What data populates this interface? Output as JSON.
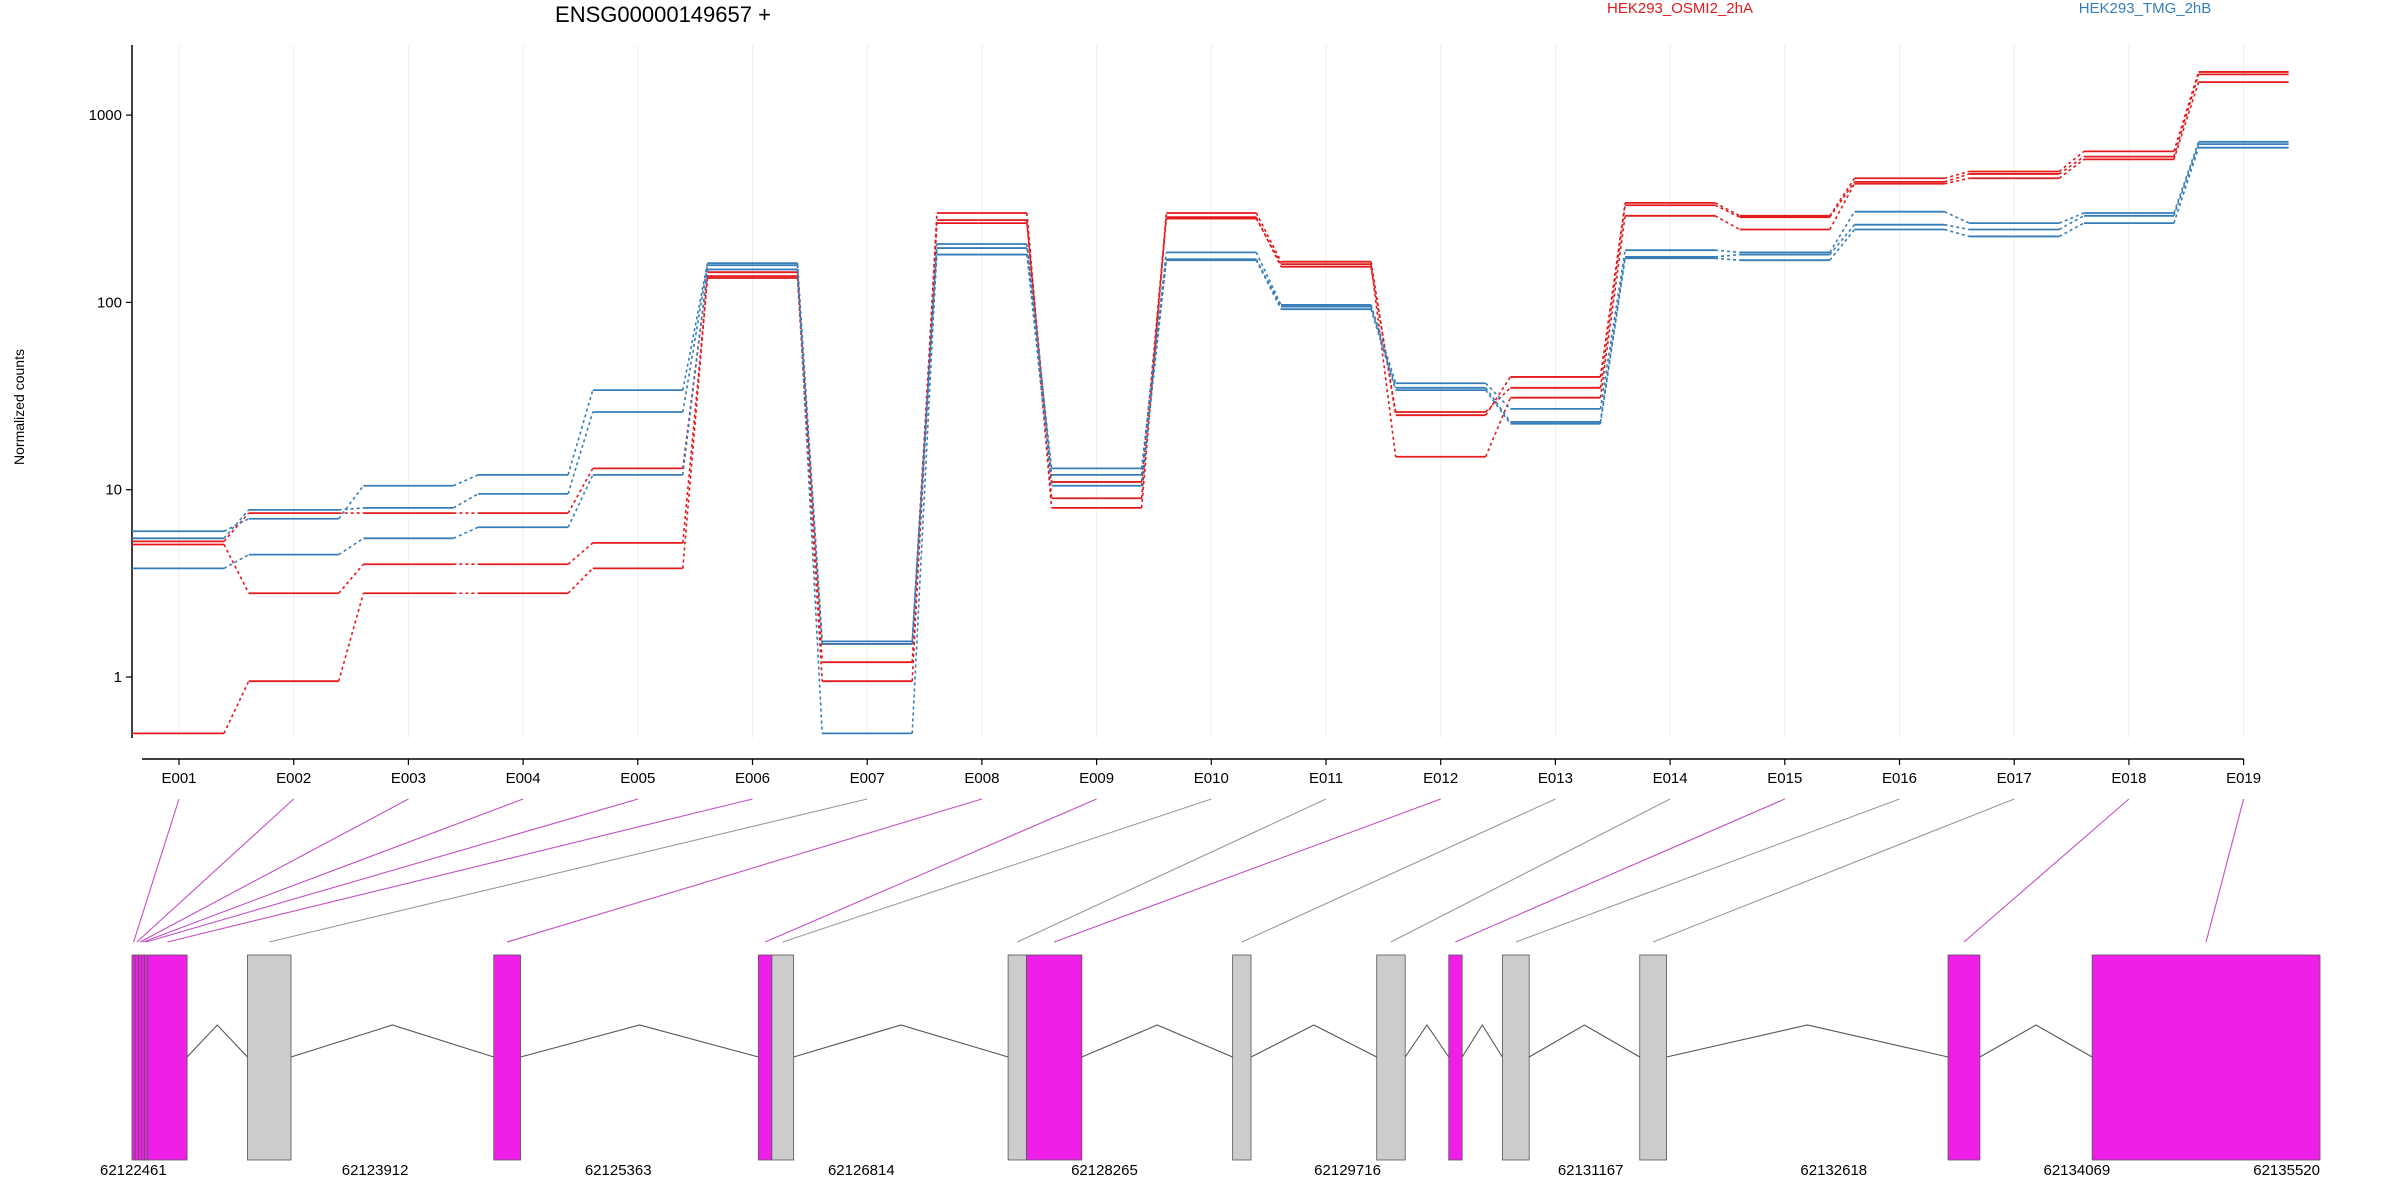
{
  "chart_data": {
    "type": "line",
    "title": "ENSG00000149657 +",
    "ylabel": "Normalized counts",
    "y_scale": "log",
    "y_ticks": [
      1,
      10,
      100,
      1000
    ],
    "y_tick_labels": [
      "1",
      "10",
      "100",
      "1000"
    ],
    "ylim": [
      0.5,
      2000
    ],
    "categories": [
      "E001",
      "E002",
      "E003",
      "E004",
      "E005",
      "E006",
      "E007",
      "E008",
      "E009",
      "E010",
      "E011",
      "E012",
      "E013",
      "E014",
      "E015",
      "E016",
      "E017",
      "E018",
      "E019"
    ],
    "legend": [
      {
        "label": "HEK293_OSMI2_2hA",
        "color": "#e41a1c"
      },
      {
        "label": "HEK293_TMG_2hB",
        "color": "#377eb8"
      }
    ],
    "series": [
      {
        "group": "HEK293_OSMI2_2hA",
        "color": "#e41a1c",
        "values": [
          5.3,
          7.5,
          7.5,
          7.5,
          13,
          145,
          1.2,
          300,
          9,
          300,
          165,
          25,
          40,
          340,
          290,
          460,
          500,
          640,
          1700
        ]
      },
      {
        "group": "HEK293_OSMI2_2hA",
        "color": "#e41a1c",
        "values": [
          5.1,
          2.8,
          4.0,
          4.0,
          5.2,
          135,
          0.95,
          275,
          8,
          285,
          155,
          26,
          35,
          330,
          285,
          440,
          485,
          600,
          1650
        ]
      },
      {
        "group": "HEK293_OSMI2_2hA",
        "color": "#e41a1c",
        "values": [
          0.5,
          0.95,
          2.8,
          2.8,
          3.8,
          138,
          1.5,
          265,
          11,
          280,
          160,
          15,
          31,
          290,
          245,
          430,
          460,
          580,
          1500
        ]
      },
      {
        "group": "HEK293_TMG_2hB",
        "color": "#377eb8",
        "values": [
          6.0,
          7.0,
          10.5,
          12,
          34,
          162,
          1.55,
          205,
          13,
          185,
          97,
          37,
          27,
          190,
          185,
          305,
          265,
          300,
          720
        ]
      },
      {
        "group": "HEK293_TMG_2hB",
        "color": "#377eb8",
        "values": [
          5.5,
          7.8,
          8.0,
          9.5,
          26,
          158,
          0.5,
          195,
          12,
          170,
          95,
          35,
          23,
          175,
          180,
          260,
          245,
          290,
          700
        ]
      },
      {
        "group": "HEK293_TMG_2hB",
        "color": "#377eb8",
        "values": [
          3.8,
          4.5,
          5.5,
          6.3,
          12,
          150,
          1.5,
          180,
          10.5,
          168,
          92,
          34,
          22.5,
          172,
          168,
          245,
          225,
          265,
          670
        ]
      }
    ],
    "gene_model": {
      "coord_min": 62122461,
      "coord_max": 62135520,
      "axis_tick_labels": [
        "62122461",
        "62123912",
        "62125363",
        "62126814",
        "62128265",
        "62129716",
        "62131167",
        "62132618",
        "62134069",
        "62135520"
      ],
      "axis_ticks": [
        62122461,
        62123912,
        62125363,
        62126814,
        62128265,
        62129716,
        62131167,
        62132618,
        62134069,
        62135520
      ],
      "exons": [
        {
          "id": "E001",
          "start": 62122461,
          "end": 62122480,
          "significant": true
        },
        {
          "id": "E002",
          "start": 62122480,
          "end": 62122500,
          "significant": true
        },
        {
          "id": "E003",
          "start": 62122500,
          "end": 62122520,
          "significant": true
        },
        {
          "id": "E004",
          "start": 62122520,
          "end": 62122535,
          "significant": true
        },
        {
          "id": "E005",
          "start": 62122535,
          "end": 62122555,
          "significant": true
        },
        {
          "id": "E006",
          "start": 62122555,
          "end": 62122790,
          "significant": true
        },
        {
          "id": "E007",
          "start": 62123150,
          "end": 62123410,
          "significant": false
        },
        {
          "id": "E008",
          "start": 62124620,
          "end": 62124780,
          "significant": true
        },
        {
          "id": "E009",
          "start": 62126200,
          "end": 62126280,
          "significant": true
        },
        {
          "id": "E010",
          "start": 62126280,
          "end": 62126410,
          "significant": false
        },
        {
          "id": "E011",
          "start": 62127690,
          "end": 62127800,
          "significant": false
        },
        {
          "id": "E012",
          "start": 62127800,
          "end": 62128130,
          "significant": true
        },
        {
          "id": "E013",
          "start": 62129030,
          "end": 62129140,
          "significant": false
        },
        {
          "id": "E014",
          "start": 62129890,
          "end": 62130060,
          "significant": false
        },
        {
          "id": "E015",
          "start": 62130320,
          "end": 62130400,
          "significant": true
        },
        {
          "id": "E016",
          "start": 62130640,
          "end": 62130800,
          "significant": false
        },
        {
          "id": "E017",
          "start": 62131460,
          "end": 62131620,
          "significant": false
        },
        {
          "id": "E018",
          "start": 62133300,
          "end": 62133490,
          "significant": true
        },
        {
          "id": "E019",
          "start": 62134160,
          "end": 62135520,
          "significant": true
        }
      ]
    }
  }
}
